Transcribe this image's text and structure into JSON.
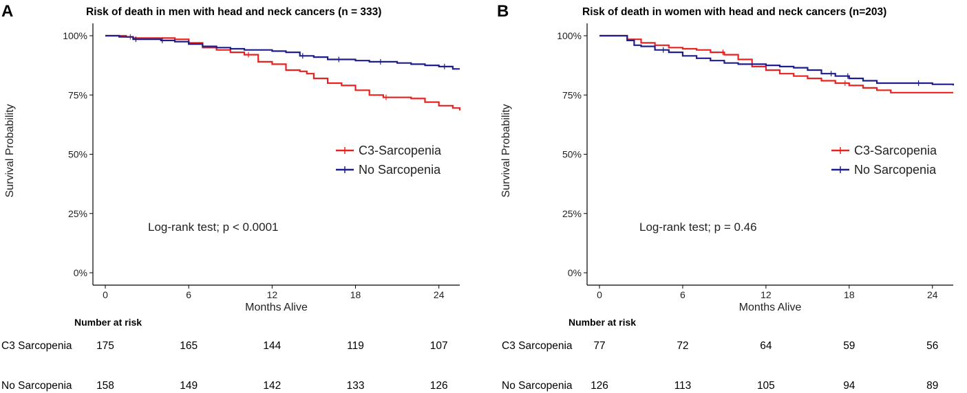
{
  "chart_data": [
    {
      "type": "line",
      "panel_letter": "A",
      "title": "Risk of death in men with head and neck cancers (n = 333)",
      "xlabel": "Months Alive",
      "ylabel": "Survival Probability",
      "xlim": [
        0,
        25.5
      ],
      "ylim": [
        0,
        1
      ],
      "x_ticks": [
        0,
        6,
        12,
        18,
        24
      ],
      "x_tick_labels": [
        "0",
        "6",
        "12",
        "18",
        "24"
      ],
      "y_ticks": [
        0,
        0.25,
        0.5,
        0.75,
        1.0
      ],
      "y_tick_labels": [
        "0%",
        "25%",
        "50%",
        "75%",
        "100%"
      ],
      "legend_position": "right-middle",
      "annotation": "Log-rank test; p < 0.0001",
      "series": [
        {
          "name": "C3-Sarcopenia",
          "color": "#e8211f",
          "points": [
            [
              0,
              1.0
            ],
            [
              1.5,
              0.995
            ],
            [
              2.0,
              0.99
            ],
            [
              3.0,
              0.99
            ],
            [
              5.0,
              0.985
            ],
            [
              6.0,
              0.97
            ],
            [
              7.0,
              0.95
            ],
            [
              8.0,
              0.94
            ],
            [
              9.0,
              0.93
            ],
            [
              10.0,
              0.92
            ],
            [
              11.0,
              0.89
            ],
            [
              12.0,
              0.88
            ],
            [
              13.0,
              0.855
            ],
            [
              14.0,
              0.85
            ],
            [
              14.5,
              0.84
            ],
            [
              15.0,
              0.82
            ],
            [
              16.0,
              0.8
            ],
            [
              17.0,
              0.79
            ],
            [
              18.0,
              0.77
            ],
            [
              19.0,
              0.75
            ],
            [
              20.0,
              0.74
            ],
            [
              22.0,
              0.735
            ],
            [
              23.0,
              0.72
            ],
            [
              24.0,
              0.705
            ],
            [
              25.0,
              0.695
            ],
            [
              25.5,
              0.685
            ]
          ],
          "censor_x": [
            1.8,
            10.3,
            20.2
          ]
        },
        {
          "name": "No Sarcopenia",
          "color": "#1c1c8c",
          "points": [
            [
              0,
              1.0
            ],
            [
              1.0,
              0.995
            ],
            [
              2.0,
              0.985
            ],
            [
              4.0,
              0.98
            ],
            [
              5.0,
              0.975
            ],
            [
              6.0,
              0.965
            ],
            [
              7.0,
              0.955
            ],
            [
              8.0,
              0.95
            ],
            [
              9.0,
              0.945
            ],
            [
              10.0,
              0.94
            ],
            [
              12.0,
              0.935
            ],
            [
              13.0,
              0.93
            ],
            [
              14.0,
              0.915
            ],
            [
              15.0,
              0.91
            ],
            [
              16.0,
              0.9
            ],
            [
              18.0,
              0.895
            ],
            [
              19.0,
              0.89
            ],
            [
              21.0,
              0.885
            ],
            [
              22.0,
              0.88
            ],
            [
              23.0,
              0.875
            ],
            [
              24.0,
              0.87
            ],
            [
              25.0,
              0.86
            ],
            [
              25.5,
              0.86
            ]
          ],
          "censor_x": [
            2.2,
            4.1,
            14.2,
            16.8,
            19.8,
            24.4
          ]
        }
      ],
      "risk_table": {
        "title": "Number at risk",
        "groups": [
          {
            "label": "C3 Sarcopenia",
            "values": [
              "175",
              "165",
              "144",
              "119",
              "107"
            ]
          },
          {
            "label": "No Sarcopenia",
            "values": [
              "158",
              "149",
              "142",
              "133",
              "126"
            ]
          }
        ]
      }
    },
    {
      "type": "line",
      "panel_letter": "B",
      "title": "Risk of death in women with head and neck cancers (n=203)",
      "xlabel": "Months Alive",
      "ylabel": "Survival Probability",
      "xlim": [
        0,
        25.5
      ],
      "ylim": [
        0,
        1
      ],
      "x_ticks": [
        0,
        6,
        12,
        18,
        24
      ],
      "x_tick_labels": [
        "0",
        "6",
        "12",
        "18",
        "24"
      ],
      "y_ticks": [
        0,
        0.25,
        0.5,
        0.75,
        1.0
      ],
      "y_tick_labels": [
        "0%",
        "25%",
        "50%",
        "75%",
        "100%"
      ],
      "legend_position": "right-middle",
      "annotation": "Log-rank test; p = 0.46",
      "series": [
        {
          "name": "C3-Sarcopenia",
          "color": "#e8211f",
          "points": [
            [
              0,
              1.0
            ],
            [
              2.0,
              0.985
            ],
            [
              3.0,
              0.97
            ],
            [
              4.0,
              0.96
            ],
            [
              5.0,
              0.95
            ],
            [
              6.0,
              0.945
            ],
            [
              7.0,
              0.94
            ],
            [
              8.0,
              0.93
            ],
            [
              9.0,
              0.92
            ],
            [
              10.0,
              0.9
            ],
            [
              11.0,
              0.87
            ],
            [
              12.0,
              0.855
            ],
            [
              13.0,
              0.84
            ],
            [
              14.0,
              0.83
            ],
            [
              15.0,
              0.82
            ],
            [
              16.0,
              0.81
            ],
            [
              17.0,
              0.8
            ],
            [
              18.0,
              0.79
            ],
            [
              19.0,
              0.78
            ],
            [
              20.0,
              0.77
            ],
            [
              21.0,
              0.76
            ],
            [
              25.5,
              0.76
            ]
          ],
          "censor_x": [
            8.9,
            17.7
          ]
        },
        {
          "name": "No Sarcopenia",
          "color": "#1c1c8c",
          "points": [
            [
              0,
              1.0
            ],
            [
              2.0,
              0.98
            ],
            [
              2.5,
              0.96
            ],
            [
              3.0,
              0.955
            ],
            [
              4.0,
              0.94
            ],
            [
              5.0,
              0.93
            ],
            [
              6.0,
              0.915
            ],
            [
              7.0,
              0.905
            ],
            [
              8.0,
              0.895
            ],
            [
              9.0,
              0.885
            ],
            [
              10.0,
              0.88
            ],
            [
              12.0,
              0.875
            ],
            [
              13.0,
              0.87
            ],
            [
              14.0,
              0.865
            ],
            [
              15.0,
              0.855
            ],
            [
              16.0,
              0.84
            ],
            [
              17.0,
              0.83
            ],
            [
              18.0,
              0.82
            ],
            [
              19.0,
              0.81
            ],
            [
              20.0,
              0.8
            ],
            [
              24.0,
              0.795
            ],
            [
              25.5,
              0.79
            ]
          ],
          "censor_x": [
            4.6,
            16.7,
            17.9,
            23.0
          ]
        }
      ],
      "risk_table": {
        "title": "Number at risk",
        "groups": [
          {
            "label": "C3 Sarcopenia",
            "values": [
              "77",
              "72",
              "64",
              "59",
              "56"
            ]
          },
          {
            "label": "No Sarcopenia",
            "values": [
              "126",
              "113",
              "105",
              "94",
              "89"
            ]
          }
        ]
      }
    }
  ]
}
